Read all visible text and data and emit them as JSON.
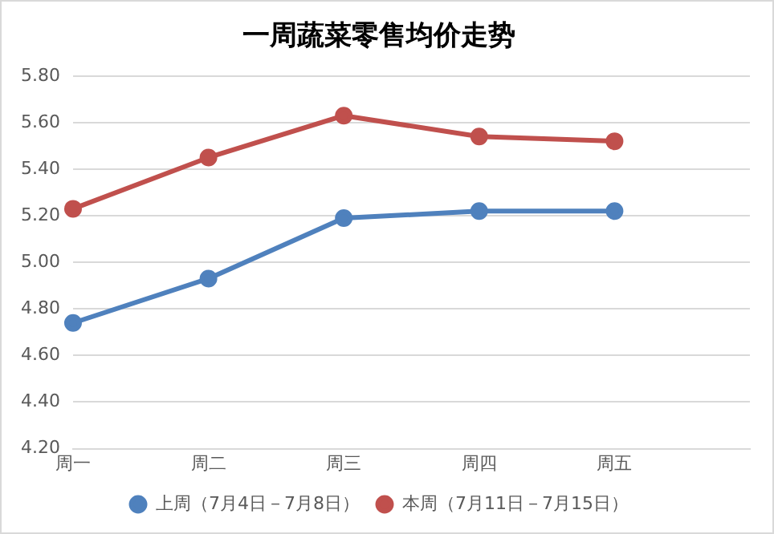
{
  "chart_data": {
    "type": "line",
    "title": "一周蔬菜零售均价走势",
    "categories": [
      "周一",
      "周二",
      "周三",
      "周四",
      "周五",
      null
    ],
    "series": [
      {
        "name": "上周（7月4日－7月8日）",
        "color": "#4f81bd",
        "values": [
          4.74,
          4.93,
          5.19,
          5.22,
          5.22,
          null
        ]
      },
      {
        "name": "本周（7月11日－7月15日）",
        "color": "#c0504d",
        "values": [
          5.23,
          5.45,
          5.63,
          5.54,
          5.52,
          null
        ]
      }
    ],
    "ylim": [
      4.2,
      5.8
    ],
    "yticks": [
      {
        "value": 4.2,
        "label": "4.20"
      },
      {
        "value": 4.4,
        "label": "4.40"
      },
      {
        "value": 4.6,
        "label": "4.60"
      },
      {
        "value": 4.8,
        "label": "4.80"
      },
      {
        "value": 5.0,
        "label": "5.00"
      },
      {
        "value": 5.2,
        "label": "5.20"
      },
      {
        "value": 5.4,
        "label": "5.40"
      },
      {
        "value": 5.6,
        "label": "5.60"
      },
      {
        "value": 5.8,
        "label": "5.80"
      }
    ],
    "grid": "y",
    "legend": "bottom",
    "marker": "circle",
    "line_style": "solid"
  }
}
